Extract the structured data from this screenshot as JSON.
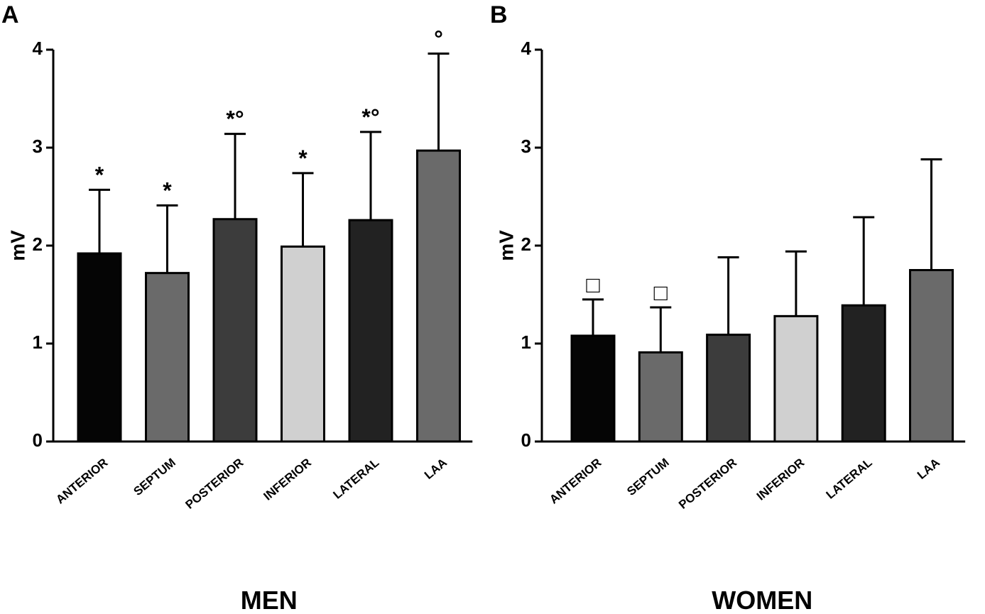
{
  "chart_data": [
    {
      "type": "bar",
      "panel": "A",
      "ylabel": "mV",
      "xlabel": "MEN",
      "categories": [
        "ANTERIOR",
        "SEPTUM",
        "POSTERIOR",
        "INFERIOR",
        "LATERAL",
        "LAA"
      ],
      "values": [
        1.92,
        1.72,
        2.27,
        1.99,
        2.26,
        2.97
      ],
      "errors": [
        0.65,
        0.69,
        0.87,
        0.75,
        0.9,
        0.99
      ],
      "annotations": [
        "*",
        "*",
        "*°",
        "*",
        "*°",
        "°"
      ],
      "colors": [
        "#050505",
        "#6a6a6a",
        "#3c3c3c",
        "#d0d0d0",
        "#222222",
        "#6a6a6a"
      ],
      "ylim": [
        0,
        4
      ],
      "yticks": [
        0,
        1,
        2,
        3,
        4
      ]
    },
    {
      "type": "bar",
      "panel": "B",
      "ylabel": "mV",
      "xlabel": "WOMEN",
      "categories": [
        "ANTERIOR",
        "SEPTUM",
        "POSTERIOR",
        "INFERIOR",
        "LATERAL",
        "LAA"
      ],
      "values": [
        1.08,
        0.91,
        1.09,
        1.28,
        1.39,
        1.75
      ],
      "errors": [
        0.37,
        0.46,
        0.79,
        0.66,
        0.9,
        1.13
      ],
      "annotations": [
        "□",
        "□",
        null,
        null,
        null,
        null
      ],
      "colors": [
        "#050505",
        "#6a6a6a",
        "#3c3c3c",
        "#d0d0d0",
        "#222222",
        "#6a6a6a"
      ],
      "ylim": [
        0,
        4
      ],
      "yticks": [
        0,
        1,
        2,
        3,
        4
      ]
    }
  ]
}
